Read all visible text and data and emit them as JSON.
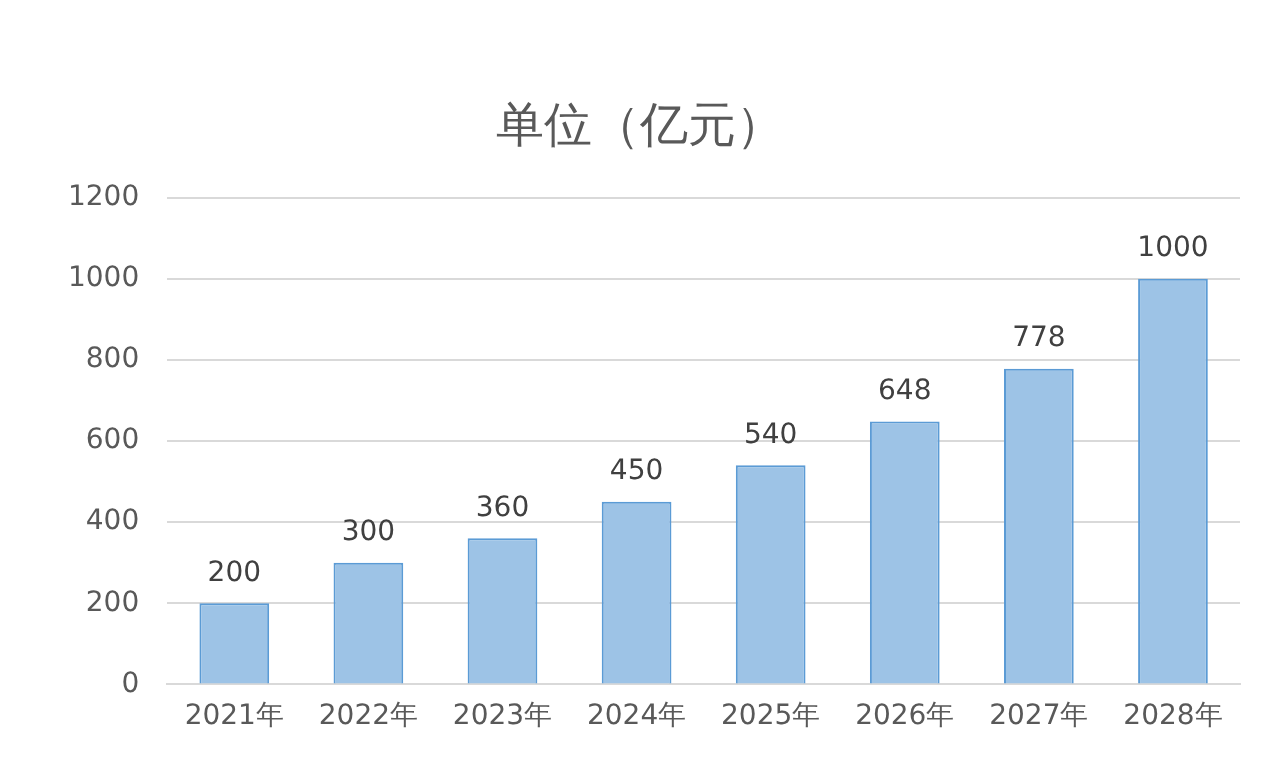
{
  "chart_data": {
    "type": "bar",
    "title": "单位（亿元）",
    "categories": [
      "2021年",
      "2022年",
      "2023年",
      "2024年",
      "2025年",
      "2026年",
      "2027年",
      "2028年"
    ],
    "values": [
      200,
      300,
      360,
      450,
      540,
      648,
      778,
      1000
    ],
    "color": "#9dc3e6",
    "ylim": [
      0,
      1200
    ],
    "yticks": [
      0,
      200,
      400,
      600,
      800,
      1000,
      1200
    ],
    "grid": "y",
    "data_labels": true,
    "legend": false
  }
}
